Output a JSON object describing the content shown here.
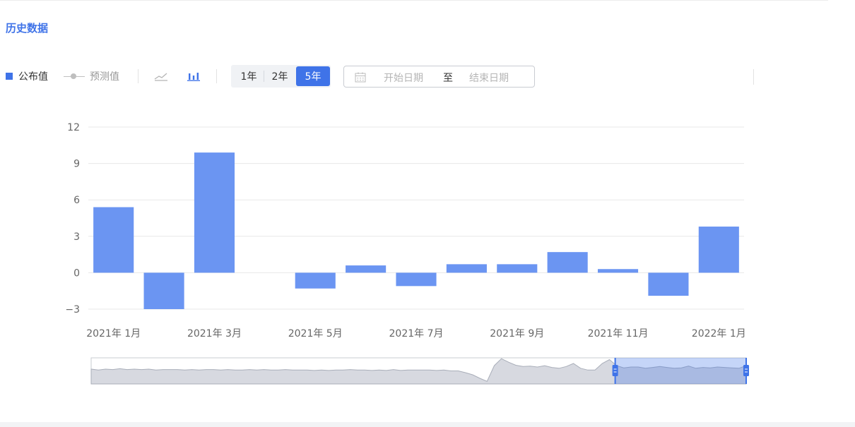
{
  "section": {
    "title": "历史数据"
  },
  "legend": {
    "published": "公布值",
    "forecast": "预测值"
  },
  "range_buttons": [
    "1年",
    "2年",
    "5年"
  ],
  "range_selected": "5年",
  "date_range": {
    "start_placeholder": "开始日期",
    "separator": "至",
    "end_placeholder": "结束日期"
  },
  "colors": {
    "accent": "#3f73e8",
    "bar": "#6b95f2",
    "grid": "#e8e8e8",
    "axis_text": "#666666"
  },
  "icons": {
    "line_chart": "line-chart-icon",
    "bar_chart": "bar-chart-icon",
    "calendar": "calendar-icon"
  },
  "chart_data": {
    "type": "bar",
    "categories": [
      "2021-01",
      "2021-02",
      "2021-03",
      "2021-04",
      "2021-05",
      "2021-06",
      "2021-07",
      "2021-08",
      "2021-09",
      "2021-10",
      "2021-11",
      "2021-12",
      "2022-01"
    ],
    "x_tick_labels": [
      "2021年 1月",
      "2021年 3月",
      "2021年 5月",
      "2021年 7月",
      "2021年 9月",
      "2021年 11月",
      "2022年 1月"
    ],
    "series": [
      {
        "name": "公布值",
        "values": [
          5.4,
          -3.0,
          9.9,
          null,
          -1.3,
          0.6,
          -1.1,
          0.7,
          0.7,
          1.7,
          0.3,
          -1.9,
          3.8
        ]
      }
    ],
    "yticks": [
      12,
      9,
      6,
      3,
      0,
      -3
    ],
    "ylim": [
      -3,
      12
    ],
    "grid": true,
    "zoom_window": {
      "start": 0.8,
      "end": 1.0
    },
    "overview_values": [
      3.4,
      3.2,
      3.4,
      3.3,
      3.5,
      3.3,
      3.4,
      3.3,
      3.4,
      3.2,
      3.3,
      3.3,
      3.3,
      3.2,
      3.3,
      3.2,
      3.3,
      3.3,
      3.2,
      3.3,
      3.2,
      3.2,
      3.3,
      3.2,
      3.3,
      3.2,
      3.2,
      3.3,
      3.2,
      3.2,
      3.2,
      3.1,
      3.2,
      3.1,
      3.2,
      3.2,
      3.3,
      3.2,
      3.2,
      3.1,
      3.2,
      3.1,
      3.3,
      3.1,
      3.2,
      3.2,
      3.2,
      3.2,
      3.1,
      3.2,
      3.0,
      3.0,
      2.6,
      2.1,
      1.3,
      0.6,
      4.2,
      5.8,
      5.0,
      4.3,
      4.0,
      4.1,
      3.9,
      4.2,
      3.8,
      3.6,
      4.0,
      4.7,
      3.6,
      3.2,
      3.2,
      4.7,
      5.6,
      4.2,
      3.7,
      3.9,
      3.9,
      3.6,
      3.8,
      4.0,
      3.8,
      3.6,
      3.7,
      4.1,
      3.6,
      3.8,
      3.7,
      3.9,
      3.8,
      3.7,
      3.6,
      4.2
    ]
  }
}
